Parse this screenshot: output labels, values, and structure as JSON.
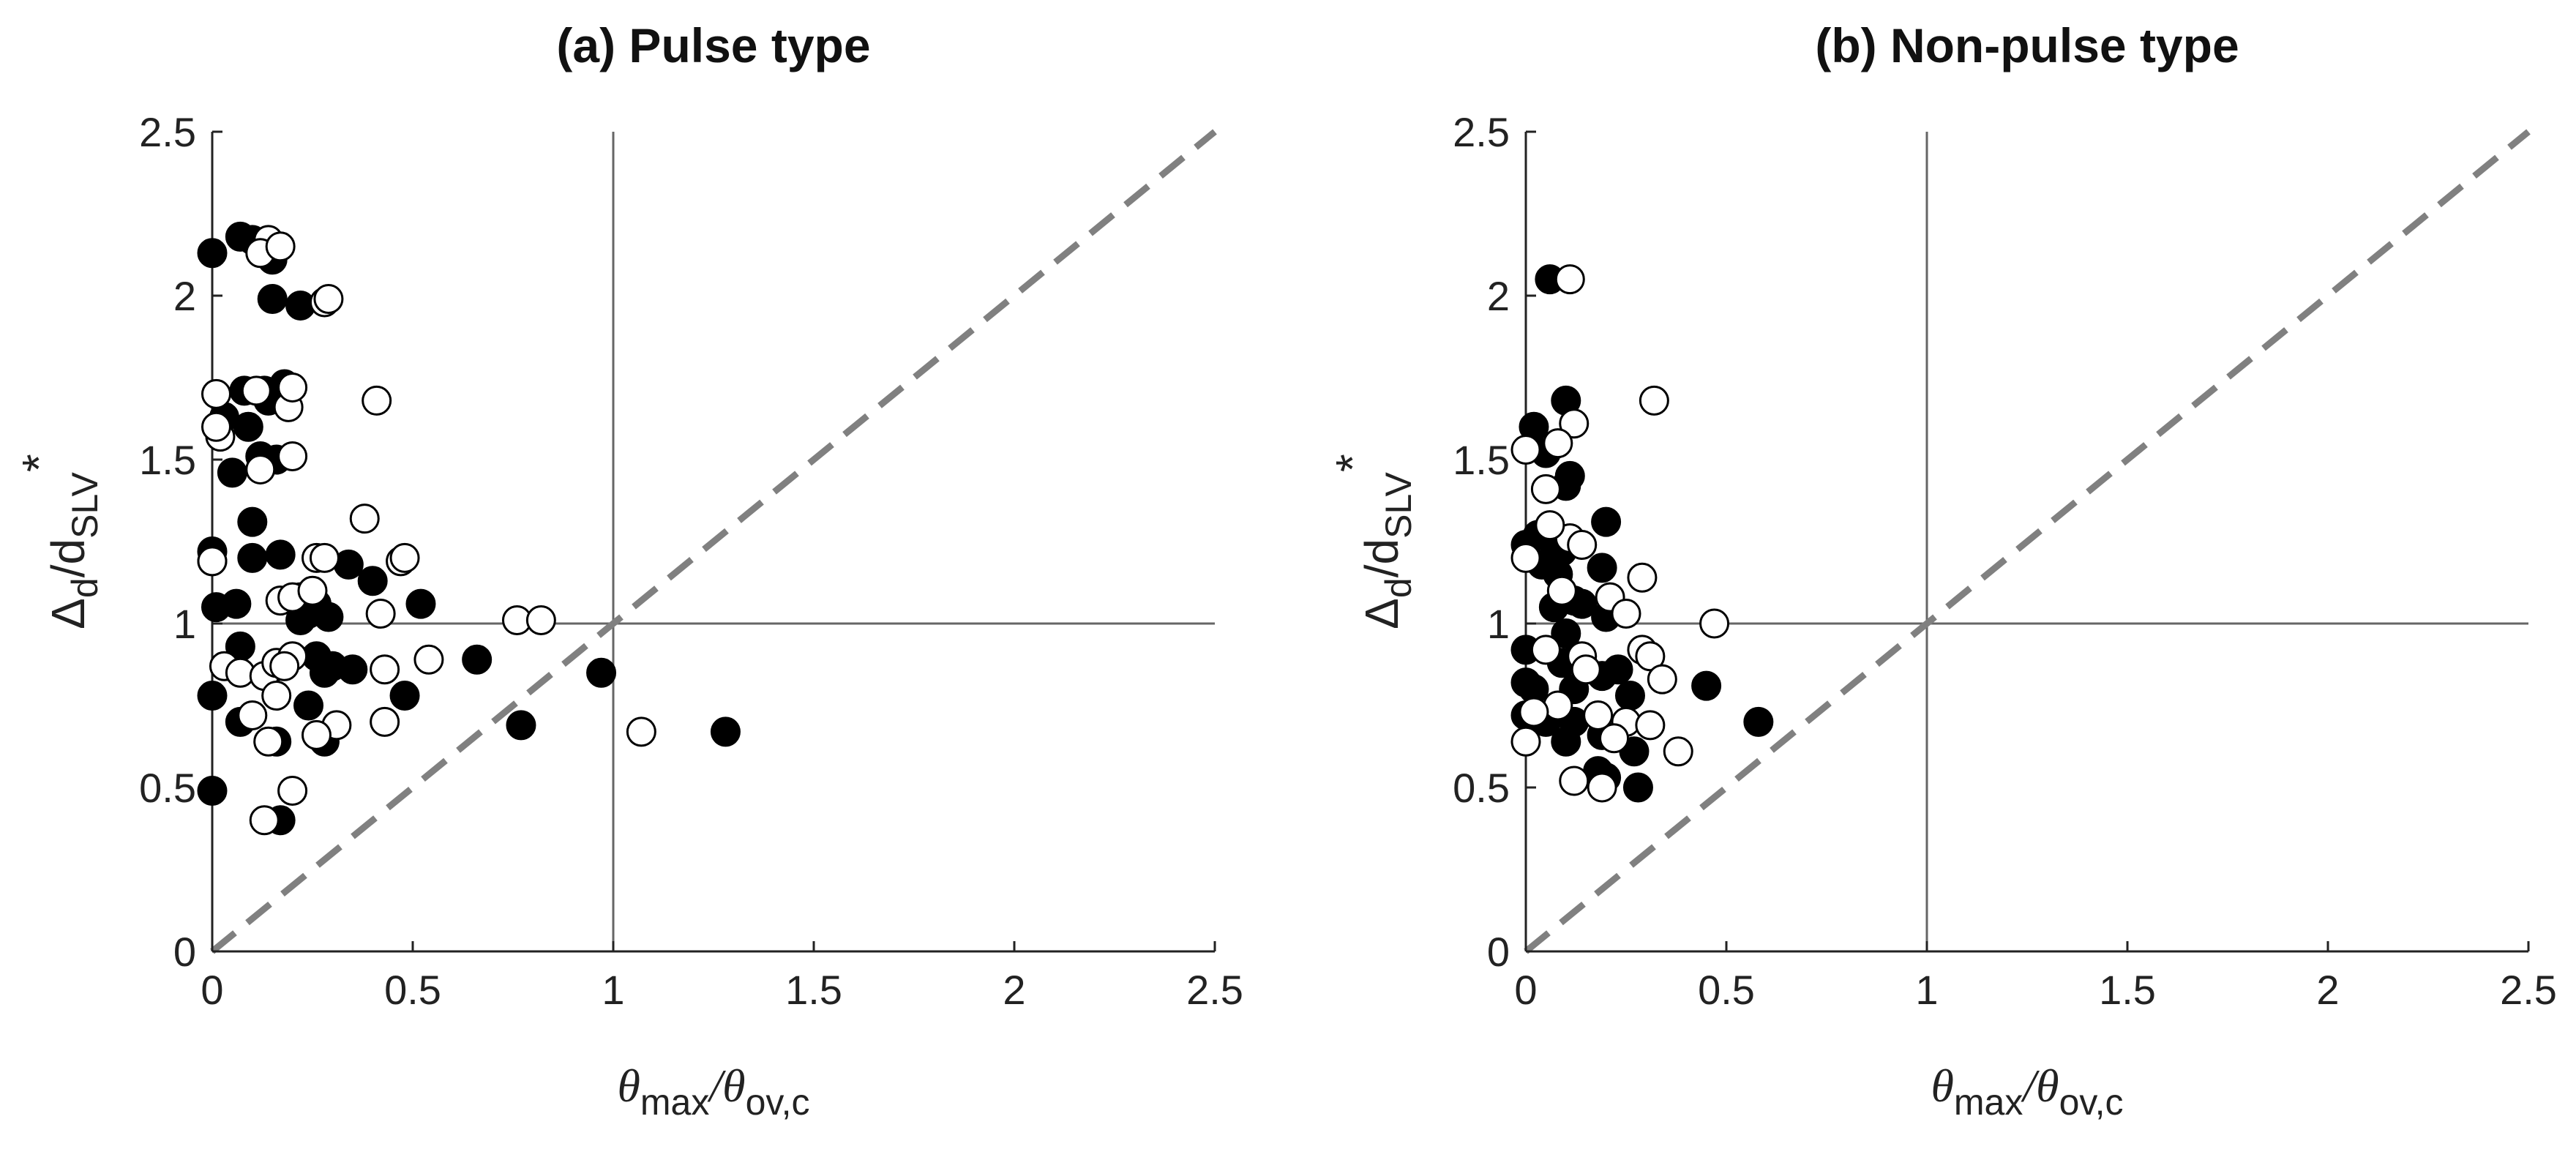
{
  "chart_data": [
    {
      "type": "scatter",
      "title": "(a) Pulse type",
      "xlabel": {
        "main": "θ",
        "sub1": "max",
        "sep": "/θ",
        "sub2": "ov,c"
      },
      "ylabel": {
        "main": "Δ",
        "sub1": "d",
        "sep": "/d",
        "sub2": "SLV",
        "sup": "*"
      },
      "xlim": [
        0,
        2.5
      ],
      "ylim": [
        0,
        2.5
      ],
      "xticks": [
        "0",
        "0.5",
        "1",
        "1.5",
        "2",
        "2.5"
      ],
      "yticks": [
        "0",
        "0.5",
        "1",
        "1.5",
        "2",
        "2.5"
      ],
      "reference_lines": {
        "x": 1,
        "y": 1,
        "diagonal": "y = x"
      },
      "series": [
        {
          "name": "filled",
          "marker": "filled-circle",
          "points": [
            [
              0.0,
              2.13
            ],
            [
              0.07,
              2.18
            ],
            [
              0.1,
              2.17
            ],
            [
              0.14,
              2.14
            ],
            [
              0.15,
              2.11
            ],
            [
              0.15,
              1.99
            ],
            [
              0.22,
              1.97
            ],
            [
              0.08,
              1.71
            ],
            [
              0.13,
              1.71
            ],
            [
              0.18,
              1.73
            ],
            [
              0.03,
              1.63
            ],
            [
              0.09,
              1.6
            ],
            [
              0.14,
              1.68
            ],
            [
              0.05,
              1.46
            ],
            [
              0.12,
              1.51
            ],
            [
              0.16,
              1.5
            ],
            [
              0.1,
              1.31
            ],
            [
              0.0,
              1.22
            ],
            [
              0.0,
              1.19
            ],
            [
              0.1,
              1.2
            ],
            [
              0.17,
              1.21
            ],
            [
              0.34,
              1.18
            ],
            [
              0.4,
              1.13
            ],
            [
              0.52,
              1.06
            ],
            [
              0.22,
              1.08
            ],
            [
              0.24,
              1.03
            ],
            [
              0.26,
              1.06
            ],
            [
              0.22,
              1.01
            ],
            [
              0.29,
              1.02
            ],
            [
              0.01,
              1.05
            ],
            [
              0.06,
              1.06
            ],
            [
              0.07,
              0.93
            ],
            [
              0.16,
              0.87
            ],
            [
              0.26,
              0.9
            ],
            [
              0.3,
              0.87
            ],
            [
              0.28,
              0.85
            ],
            [
              0.35,
              0.86
            ],
            [
              0.66,
              0.89
            ],
            [
              0.97,
              0.85
            ],
            [
              0.0,
              0.78
            ],
            [
              0.07,
              0.7
            ],
            [
              0.24,
              0.75
            ],
            [
              0.16,
              0.64
            ],
            [
              0.28,
              0.64
            ],
            [
              0.48,
              0.78
            ],
            [
              0.77,
              0.69
            ],
            [
              1.28,
              0.67
            ],
            [
              0.0,
              0.49
            ],
            [
              0.17,
              0.4
            ]
          ]
        },
        {
          "name": "open",
          "marker": "open-circle",
          "points": [
            [
              0.13,
              2.15
            ],
            [
              0.14,
              2.17
            ],
            [
              0.12,
              2.13
            ],
            [
              0.17,
              2.15
            ],
            [
              0.28,
              1.98
            ],
            [
              0.29,
              1.99
            ],
            [
              0.01,
              1.7
            ],
            [
              0.11,
              1.71
            ],
            [
              0.19,
              1.66
            ],
            [
              0.2,
              1.72
            ],
            [
              0.41,
              1.68
            ],
            [
              0.02,
              1.57
            ],
            [
              0.12,
              1.47
            ],
            [
              0.2,
              1.51
            ],
            [
              0.01,
              1.6
            ],
            [
              0.38,
              1.32
            ],
            [
              0.0,
              1.19
            ],
            [
              0.26,
              1.2
            ],
            [
              0.47,
              1.19
            ],
            [
              0.48,
              1.2
            ],
            [
              0.28,
              1.2
            ],
            [
              0.17,
              1.07
            ],
            [
              0.2,
              1.08
            ],
            [
              0.25,
              1.1
            ],
            [
              0.42,
              1.03
            ],
            [
              0.76,
              1.01
            ],
            [
              0.82,
              1.01
            ],
            [
              0.03,
              0.87
            ],
            [
              0.07,
              0.85
            ],
            [
              0.13,
              0.84
            ],
            [
              0.16,
              0.88
            ],
            [
              0.2,
              0.9
            ],
            [
              0.18,
              0.87
            ],
            [
              0.43,
              0.86
            ],
            [
              0.54,
              0.89
            ],
            [
              0.1,
              0.72
            ],
            [
              0.16,
              0.78
            ],
            [
              0.31,
              0.69
            ],
            [
              0.43,
              0.7
            ],
            [
              0.26,
              0.66
            ],
            [
              0.14,
              0.64
            ],
            [
              1.07,
              0.67
            ],
            [
              0.2,
              0.49
            ],
            [
              0.13,
              0.4
            ]
          ]
        }
      ]
    },
    {
      "type": "scatter",
      "title": "(b) Non-pulse type",
      "xlabel": {
        "main": "θ",
        "sub1": "max",
        "sep": "/θ",
        "sub2": "ov,c"
      },
      "ylabel": {
        "main": "Δ",
        "sub1": "d",
        "sep": "/d",
        "sub2": "SLV",
        "sup": "*"
      },
      "xlim": [
        0,
        2.5
      ],
      "ylim": [
        0,
        2.5
      ],
      "xticks": [
        "0",
        "0.5",
        "1",
        "1.5",
        "2",
        "2.5"
      ],
      "yticks": [
        "0",
        "0.5",
        "1",
        "1.5",
        "2",
        "2.5"
      ],
      "reference_lines": {
        "x": 1,
        "y": 1,
        "diagonal": "y = x"
      },
      "series": [
        {
          "name": "filled",
          "marker": "filled-circle",
          "points": [
            [
              0.06,
              2.05
            ],
            [
              0.02,
              1.6
            ],
            [
              0.1,
              1.68
            ],
            [
              0.05,
              1.52
            ],
            [
              0.11,
              1.45
            ],
            [
              0.1,
              1.42
            ],
            [
              0.2,
              1.31
            ],
            [
              0.0,
              1.24
            ],
            [
              0.03,
              1.27
            ],
            [
              0.06,
              1.26
            ],
            [
              0.09,
              1.22
            ],
            [
              0.04,
              1.18
            ],
            [
              0.08,
              1.15
            ],
            [
              0.19,
              1.17
            ],
            [
              0.12,
              1.07
            ],
            [
              0.07,
              1.05
            ],
            [
              0.14,
              1.06
            ],
            [
              0.1,
              0.97
            ],
            [
              0.2,
              1.02
            ],
            [
              0.0,
              0.92
            ],
            [
              0.09,
              0.88
            ],
            [
              0.13,
              0.9
            ],
            [
              0.19,
              0.84
            ],
            [
              0.23,
              0.86
            ],
            [
              0.0,
              0.82
            ],
            [
              0.02,
              0.8
            ],
            [
              0.12,
              0.8
            ],
            [
              0.26,
              0.78
            ],
            [
              0.45,
              0.81
            ],
            [
              0.0,
              0.72
            ],
            [
              0.05,
              0.7
            ],
            [
              0.12,
              0.7
            ],
            [
              0.19,
              0.66
            ],
            [
              0.1,
              0.64
            ],
            [
              0.27,
              0.61
            ],
            [
              0.58,
              0.7
            ],
            [
              0.18,
              0.55
            ],
            [
              0.2,
              0.53
            ],
            [
              0.28,
              0.5
            ]
          ]
        },
        {
          "name": "open",
          "marker": "open-circle",
          "points": [
            [
              0.11,
              2.05
            ],
            [
              0.12,
              1.61
            ],
            [
              0.32,
              1.68
            ],
            [
              0.0,
              1.53
            ],
            [
              0.08,
              1.55
            ],
            [
              0.05,
              1.41
            ],
            [
              0.0,
              1.2
            ],
            [
              0.11,
              1.26
            ],
            [
              0.14,
              1.24
            ],
            [
              0.06,
              1.3
            ],
            [
              0.29,
              1.14
            ],
            [
              0.09,
              1.1
            ],
            [
              0.21,
              1.08
            ],
            [
              0.47,
              1.0
            ],
            [
              0.25,
              1.03
            ],
            [
              0.05,
              0.92
            ],
            [
              0.14,
              0.9
            ],
            [
              0.29,
              0.92
            ],
            [
              0.31,
              0.9
            ],
            [
              0.15,
              0.86
            ],
            [
              0.34,
              0.83
            ],
            [
              0.08,
              0.75
            ],
            [
              0.02,
              0.73
            ],
            [
              0.18,
              0.72
            ],
            [
              0.25,
              0.7
            ],
            [
              0.31,
              0.69
            ],
            [
              0.0,
              0.64
            ],
            [
              0.22,
              0.65
            ],
            [
              0.38,
              0.61
            ],
            [
              0.12,
              0.52
            ],
            [
              0.19,
              0.5
            ]
          ]
        }
      ]
    }
  ]
}
